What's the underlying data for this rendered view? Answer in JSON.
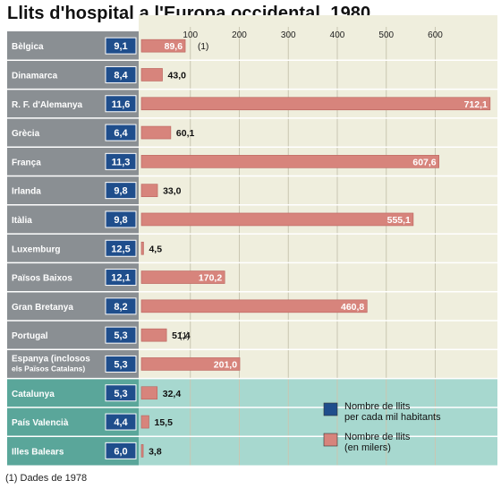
{
  "title": "Llits d'hospital a l'Europa occidental. 1980",
  "footnote": "(1) Dades de 1978",
  "colors": {
    "page_bg": "#ffffff",
    "label_col_gray": "#8a8f93",
    "label_col_teal": "#5aa69a",
    "plot_bg_cream": "#efeedd",
    "plot_bg_teal": "#a7d8cf",
    "row_separator": "#ffffff",
    "grid": "#c9c6b2",
    "beds_per_thousand_box": "#1f4e8c",
    "beds_thousands_bar": "#d7847c"
  },
  "legend": {
    "items": [
      {
        "label_line1": "Nombre de llits",
        "label_line2": "per cada mil habitants",
        "color": "#1f4e8c"
      },
      {
        "label_line1": "Nombre de llits",
        "label_line2": "(en milers)",
        "color": "#d7847c"
      }
    ]
  },
  "chart_data": {
    "type": "bar",
    "title": "Llits d'hospital a l'Europa occidental. 1980",
    "orientation": "horizontal",
    "xlim": [
      0,
      700
    ],
    "xticks": [
      100,
      200,
      300,
      400,
      500,
      600
    ],
    "categories": [
      "Bèlgica",
      "Dinamarca",
      "R. F. d'Alemanya",
      "Grècia",
      "França",
      "Irlanda",
      "Itàlia",
      "Luxemburg",
      "Països Baixos",
      "Gran Bretanya",
      "Portugal",
      [
        "Espanya (inclosos",
        "els Països Catalans)"
      ],
      "Catalunya",
      "País Valencià",
      "Illes Balears"
    ],
    "highlight_from_index": 12,
    "series": [
      {
        "name": "Nombre de llits per cada mil habitants",
        "values": [
          9.1,
          8.4,
          11.6,
          6.4,
          11.3,
          9.8,
          9.8,
          12.5,
          12.1,
          8.2,
          5.3,
          5.3,
          5.3,
          4.4,
          6.0
        ],
        "labels": [
          "9,1",
          "8,4",
          "11,6",
          "6,4",
          "11,3",
          "9,8",
          "9,8",
          "12,5",
          "12,1",
          "8,2",
          "5,3",
          "5,3",
          "5,3",
          "4,4",
          "6,0"
        ]
      },
      {
        "name": "Nombre de llits (en milers)",
        "values": [
          89.6,
          43.0,
          712.1,
          60.1,
          607.6,
          33.0,
          555.1,
          4.5,
          170.2,
          460.8,
          51.4,
          201.0,
          32.4,
          15.5,
          3.8
        ],
        "labels": [
          "89,6",
          "43,0",
          "712,1",
          "60,1",
          "607,6",
          "33,0",
          "555,1",
          "4,5",
          "170,2",
          "460,8",
          "51,4",
          "201,0",
          "32,4",
          "15,5",
          "3,8"
        ]
      }
    ],
    "annotations": [
      {
        "category_index": 0,
        "text": "(1)"
      },
      {
        "category_index": 10,
        "text": "(1)"
      }
    ]
  }
}
